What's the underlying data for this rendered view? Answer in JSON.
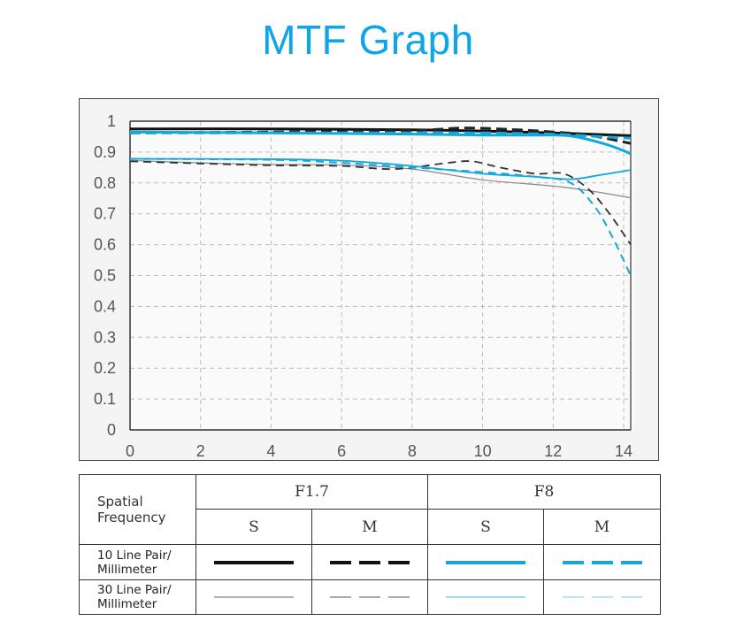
{
  "title": "MTF Graph",
  "colors": {
    "title": "#0ea5e9",
    "black": "#111111",
    "dash_dark": "#333333",
    "cyan": "#13a8dc",
    "cyan_light": "#6fd0ee",
    "gray": "#777777"
  },
  "chart_data": {
    "type": "line",
    "title": "",
    "xlabel": "",
    "ylabel": "",
    "xlim": [
      0,
      14.2
    ],
    "ylim": [
      0,
      1
    ],
    "x_ticks": [
      0,
      2,
      4,
      6,
      8,
      10,
      12,
      14
    ],
    "y_ticks": [
      0,
      0.1,
      0.2,
      0.3,
      0.4,
      0.5,
      0.6,
      0.7,
      0.8,
      0.9,
      1
    ],
    "y_tick_labels": [
      "0",
      "0.1",
      "0.2",
      "0.3",
      "0.4",
      "0.5",
      "0.6",
      "0.7",
      "0.8",
      "0.9",
      "1"
    ],
    "grid": true,
    "series": [
      {
        "aperture": "F1.7",
        "orientation": "S",
        "frequency": "10 Line Pair/Millimeter",
        "style": "solid",
        "color": "#111111",
        "width": 3,
        "points": [
          [
            0,
            0.975
          ],
          [
            4,
            0.975
          ],
          [
            8,
            0.972
          ],
          [
            10,
            0.968
          ],
          [
            12,
            0.962
          ],
          [
            13,
            0.958
          ],
          [
            14.2,
            0.953
          ]
        ]
      },
      {
        "aperture": "F1.7",
        "orientation": "M",
        "frequency": "10 Line Pair/Millimeter",
        "style": "dashed",
        "color": "#222222",
        "width": 3,
        "points": [
          [
            0,
            0.962
          ],
          [
            4,
            0.965
          ],
          [
            8,
            0.97
          ],
          [
            9.5,
            0.978
          ],
          [
            11,
            0.972
          ],
          [
            12,
            0.965
          ],
          [
            13,
            0.955
          ],
          [
            14.2,
            0.928
          ]
        ]
      },
      {
        "aperture": "F8",
        "orientation": "S",
        "frequency": "10 Line Pair/Millimeter",
        "style": "solid",
        "color": "#13a8dc",
        "width": 3,
        "points": [
          [
            0,
            0.965
          ],
          [
            4,
            0.962
          ],
          [
            8,
            0.958
          ],
          [
            10,
            0.955
          ],
          [
            11.5,
            0.955
          ],
          [
            12.5,
            0.952
          ],
          [
            13.5,
            0.925
          ],
          [
            14.2,
            0.895
          ]
        ]
      },
      {
        "aperture": "F8",
        "orientation": "M",
        "frequency": "10 Line Pair/Millimeter",
        "style": "dashed",
        "color": "#13a8dc",
        "width": 3,
        "points": [
          [
            0,
            0.962
          ],
          [
            4,
            0.962
          ],
          [
            8,
            0.962
          ],
          [
            10,
            0.962
          ],
          [
            12,
            0.958
          ],
          [
            13,
            0.952
          ],
          [
            14.2,
            0.945
          ]
        ]
      },
      {
        "aperture": "F1.7",
        "orientation": "S",
        "frequency": "30 Line Pair/Millimeter",
        "style": "solid",
        "color": "#888888",
        "width": 1.2,
        "points": [
          [
            0,
            0.873
          ],
          [
            2,
            0.865
          ],
          [
            4,
            0.86
          ],
          [
            6,
            0.858
          ],
          [
            8,
            0.845
          ],
          [
            10,
            0.81
          ],
          [
            12,
            0.79
          ],
          [
            13,
            0.775
          ],
          [
            14.2,
            0.752
          ]
        ]
      },
      {
        "aperture": "F1.7",
        "orientation": "M",
        "frequency": "30 Line Pair/Millimeter",
        "style": "dashed",
        "color": "#333333",
        "width": 1.8,
        "points": [
          [
            0,
            0.87
          ],
          [
            2,
            0.863
          ],
          [
            4,
            0.857
          ],
          [
            6,
            0.855
          ],
          [
            7.5,
            0.845
          ],
          [
            9,
            0.865
          ],
          [
            9.7,
            0.87
          ],
          [
            10.5,
            0.85
          ],
          [
            11.5,
            0.83
          ],
          [
            12.3,
            0.83
          ],
          [
            13,
            0.78
          ],
          [
            13.6,
            0.7
          ],
          [
            14.2,
            0.6
          ]
        ]
      },
      {
        "aperture": "F8",
        "orientation": "S",
        "frequency": "30 Line Pair/Millimeter",
        "style": "solid",
        "color": "#13a8dc",
        "width": 1.8,
        "points": [
          [
            0,
            0.878
          ],
          [
            4,
            0.877
          ],
          [
            6,
            0.872
          ],
          [
            8,
            0.855
          ],
          [
            10,
            0.83
          ],
          [
            11.5,
            0.82
          ],
          [
            12.5,
            0.812
          ],
          [
            13.3,
            0.825
          ],
          [
            14.2,
            0.842
          ]
        ]
      },
      {
        "aperture": "F8",
        "orientation": "M",
        "frequency": "30 Line Pair/Millimeter",
        "style": "dashed",
        "color": "#13a8dc",
        "width": 2,
        "points": [
          [
            0,
            0.878
          ],
          [
            4,
            0.875
          ],
          [
            6,
            0.865
          ],
          [
            8,
            0.85
          ],
          [
            10,
            0.835
          ],
          [
            11.5,
            0.82
          ],
          [
            12.5,
            0.8
          ],
          [
            13.2,
            0.72
          ],
          [
            13.7,
            0.62
          ],
          [
            14.2,
            0.5
          ]
        ]
      }
    ]
  },
  "legend_table": {
    "header_label_line1": "Spatial",
    "header_label_line2": "Frequency",
    "group_f17": "F1.7",
    "group_f8": "F8",
    "sub_s": "S",
    "sub_m": "M",
    "row10_line1": "10 Line Pair/",
    "row10_line2": "Millimeter",
    "row30_line1": "30 Line Pair/",
    "row30_line2": "Millimeter"
  }
}
